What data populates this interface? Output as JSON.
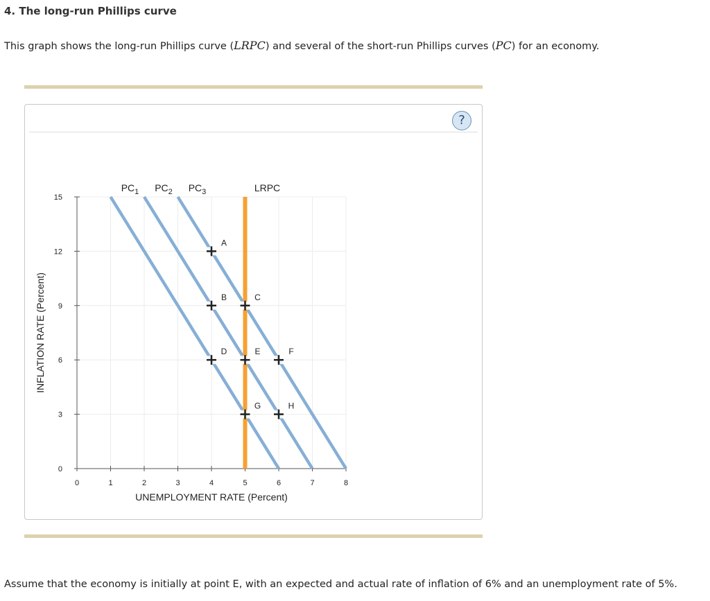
{
  "question": {
    "title": "4. The long-run Phillips curve",
    "intro_prefix": "This graph shows the long-run Phillips curve (",
    "lrpc_symbol": "LRPC",
    "intro_middle": ") and several of the short-run Phillips curves (",
    "pc_symbol": "PC",
    "intro_suffix": ") for an economy.",
    "footer": "Assume that the economy is initially at point E, with an expected and actual rate of inflation of 6% and an unemployment rate of 5%."
  },
  "help": {
    "label": "?"
  },
  "colors": {
    "pc_line": "#86afd6",
    "lrpc_line": "#f7a133",
    "grid": "#ececec",
    "point": "#222222",
    "divider": "#dcd2ad"
  },
  "chart_data": {
    "type": "line",
    "xlabel": "UNEMPLOYMENT RATE (Percent)",
    "ylabel": "INFLATION RATE (Percent)",
    "xlim": [
      0,
      8
    ],
    "ylim": [
      0,
      15
    ],
    "x_ticks": [
      0,
      1,
      2,
      3,
      4,
      5,
      6,
      7,
      8
    ],
    "y_ticks": [
      0,
      3,
      6,
      9,
      12,
      15
    ],
    "grid": true,
    "series": [
      {
        "name": "PC",
        "sub": "1",
        "x": [
          1,
          6
        ],
        "y": [
          15,
          0
        ]
      },
      {
        "name": "PC",
        "sub": "2",
        "x": [
          2,
          7
        ],
        "y": [
          15,
          0
        ]
      },
      {
        "name": "PC",
        "sub": "3",
        "x": [
          3,
          8
        ],
        "y": [
          15,
          0
        ]
      },
      {
        "name": "LRPC",
        "sub": "",
        "x": [
          5,
          5
        ],
        "y": [
          15,
          0
        ]
      }
    ],
    "points": [
      {
        "label": "A",
        "x": 4,
        "y": 12
      },
      {
        "label": "B",
        "x": 4,
        "y": 9
      },
      {
        "label": "C",
        "x": 5,
        "y": 9
      },
      {
        "label": "D",
        "x": 4,
        "y": 6
      },
      {
        "label": "E",
        "x": 5,
        "y": 6
      },
      {
        "label": "F",
        "x": 6,
        "y": 6
      },
      {
        "label": "G",
        "x": 5,
        "y": 3
      },
      {
        "label": "H",
        "x": 6,
        "y": 3
      }
    ]
  }
}
